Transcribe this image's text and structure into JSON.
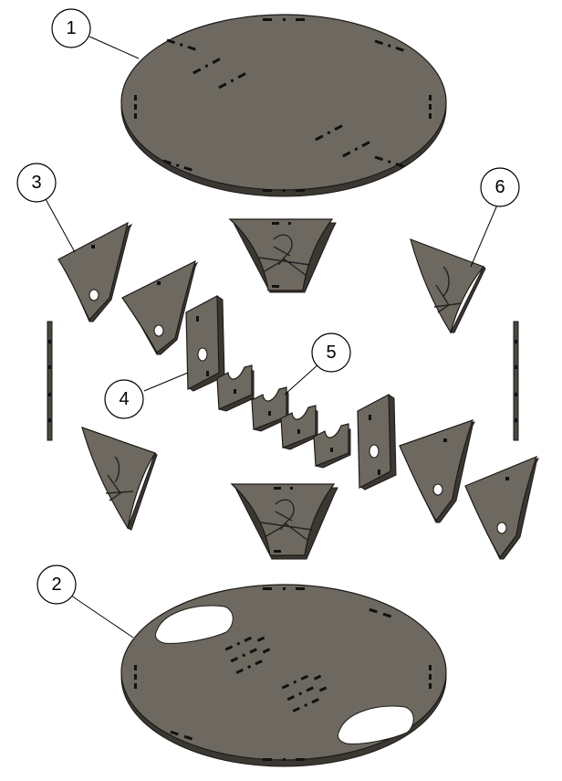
{
  "balloons": [
    {
      "id": "1",
      "label": "1"
    },
    {
      "id": "2",
      "label": "2"
    },
    {
      "id": "3",
      "label": "3"
    },
    {
      "id": "4",
      "label": "4"
    },
    {
      "id": "5",
      "label": "5"
    },
    {
      "id": "6",
      "label": "6"
    }
  ],
  "colors": {
    "panel": "#6e6960",
    "panel_edge": "#3b3833",
    "outline": "#1c1a17",
    "background": "#ffffff"
  }
}
